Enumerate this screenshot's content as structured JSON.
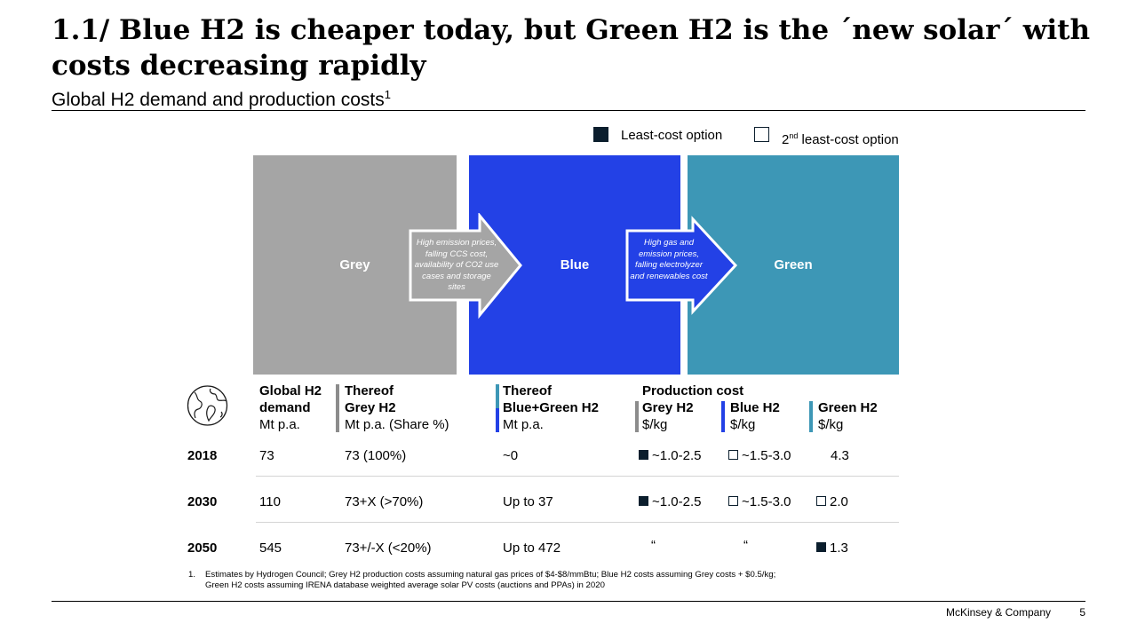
{
  "header": {
    "title": "1.1/ Blue H2 is cheaper today, but Green H2 is the ´new solar´ with costs decreasing rapidly",
    "subtitle": "Global H2 demand and production costs",
    "subtitle_footnote_marker": "1"
  },
  "legend": {
    "least_cost_label": "Least-cost option",
    "second_prefix": "2",
    "second_sup": "nd",
    "second_suffix": " least-cost option"
  },
  "panels": {
    "grey": {
      "label": "Grey",
      "color": "#a5a5a5"
    },
    "blue": {
      "label": "Blue",
      "color": "#2341e6"
    },
    "green": {
      "label": "Green",
      "color": "#3d97b6"
    },
    "arrow1_text": "High emission prices, falling CCS cost, availability of CO2 use cases and storage sites",
    "arrow2_text": "High gas and emission prices, falling electrolyzer and renewables cost"
  },
  "icons": {
    "globe": "globe-icon"
  },
  "columns": {
    "demand": {
      "l1": "Global H2",
      "l2": "demand",
      "unit": "Mt p.a."
    },
    "grey_share": {
      "l1": "Thereof",
      "l2": "Grey H2",
      "unit": "Mt p.a. (Share %)"
    },
    "bluegreen": {
      "l1": "Thereof",
      "l2": "Blue+Green H2",
      "unit": "Mt p.a."
    },
    "production_cost": "Production cost",
    "grey_cost": {
      "l1": "Grey H2",
      "unit": "$/kg"
    },
    "blue_cost": {
      "l1": "Blue H2",
      "unit": "$/kg"
    },
    "green_cost": {
      "l1": "Green H2",
      "unit": "$/kg"
    }
  },
  "rows": [
    {
      "year": "2018",
      "demand": "73",
      "grey": "73 (100%)",
      "bluegreen": "~0",
      "grey_cost": "~1.0-2.5",
      "blue_cost": "~1.5-3.0",
      "green_cost": "4.3"
    },
    {
      "year": "2030",
      "demand": "110",
      "grey": "73+X (>70%)",
      "bluegreen": "Up to 37",
      "grey_cost": "~1.0-2.5",
      "blue_cost": "~1.5-3.0",
      "green_cost": "2.0"
    },
    {
      "year": "2050",
      "demand": "545",
      "grey": "73+/-X (<20%)",
      "bluegreen": "Up to 472",
      "grey_cost": "“",
      "blue_cost": "“",
      "green_cost": "1.3"
    }
  ],
  "footnote": {
    "number": "1.",
    "line1": "Estimates by Hydrogen Council; Grey H2 production costs assuming natural gas prices of $4-$8/mmBtu; Blue H2 costs assuming Grey costs + $0.5/kg;",
    "line2": "Green H2 costs assuming IRENA database weighted average solar PV costs (auctions and PPAs) in 2020"
  },
  "footer": {
    "brand": "McKinsey & Company",
    "page": "5"
  },
  "colors": {
    "dark_marker": "#0b1e2d",
    "grey": "#a5a5a5",
    "blue": "#2341e6",
    "green": "#3d97b6"
  }
}
